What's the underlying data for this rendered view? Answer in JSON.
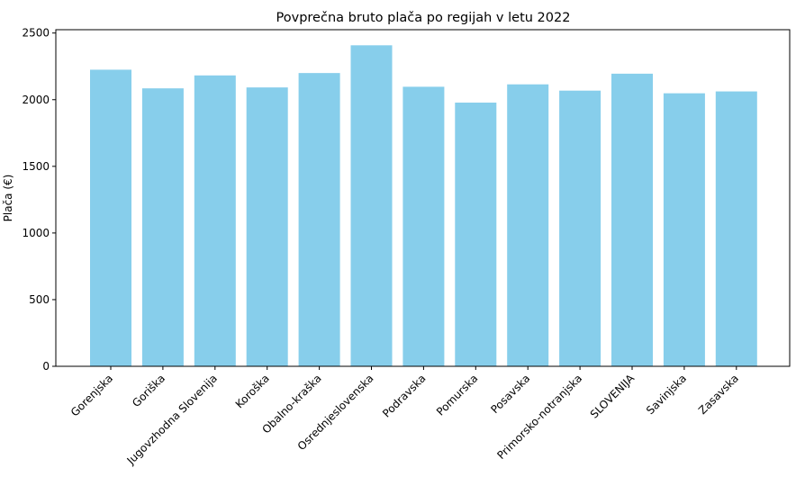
{
  "chart_data": {
    "type": "bar",
    "title": "Povprečna bruto plača po regijah v letu 2022",
    "xlabel": "",
    "ylabel": "Plača (€)",
    "categories": [
      "Gorenjska",
      "Goriška",
      "Jugovzhodna Slovenija",
      "Koroška",
      "Obalno-kraška",
      "Osrednjeslovenska",
      "Podravska",
      "Pomurska",
      "Posavska",
      "Primorsko-notranjska",
      "SLOVENIJA",
      "Savinjska",
      "Zasavska"
    ],
    "values": [
      2225,
      2085,
      2182,
      2092,
      2200,
      2408,
      2097,
      1978,
      2115,
      2068,
      2195,
      2048,
      2062
    ],
    "ylim": [
      0,
      2525
    ],
    "yticks": [
      0,
      500,
      1000,
      1500,
      2000,
      2500
    ],
    "bar_color": "#87CEEB",
    "grid": false,
    "legend": "none"
  }
}
